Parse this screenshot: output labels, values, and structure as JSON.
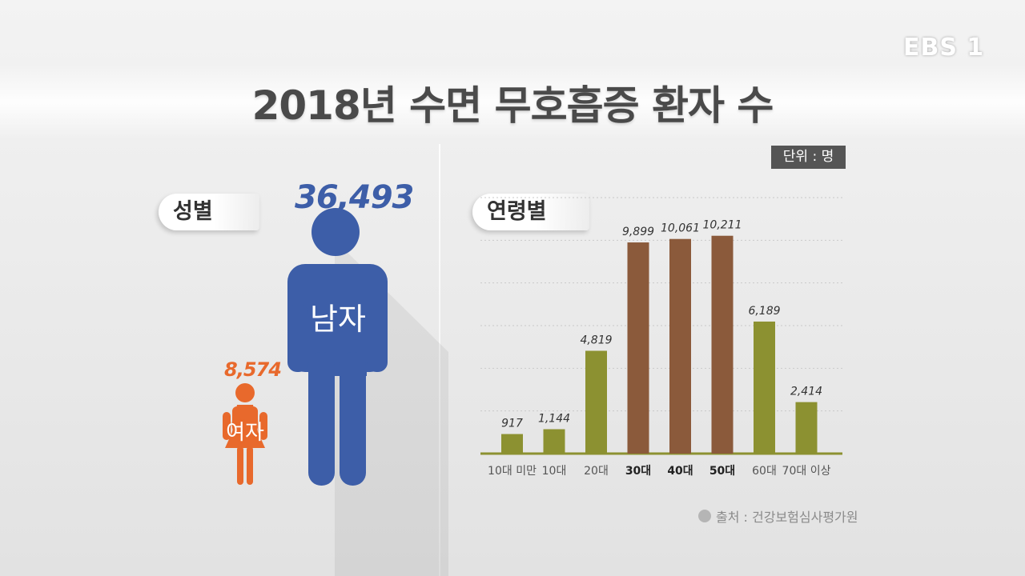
{
  "logo": "EBS 1",
  "title": "2018년 수면 무호흡증 환자 수",
  "unit": "단위 : 명",
  "gender": {
    "section_label": "성별",
    "male": {
      "label": "남자",
      "value_text": "36,493",
      "value": 36493,
      "color": "#3d5ea8"
    },
    "female": {
      "label": "여자",
      "value_text": "8,574",
      "value": 8574,
      "color": "#e8692c"
    }
  },
  "age_section_label": "연령별",
  "source": "출처 : 건강보험심사평가원",
  "chart_data": {
    "type": "bar",
    "categories": [
      "10대 미만",
      "10대",
      "20대",
      "30대",
      "40대",
      "50대",
      "60대",
      "70대 이상"
    ],
    "values": [
      917,
      1144,
      4819,
      9899,
      10061,
      10211,
      6189,
      2414
    ],
    "value_labels": [
      "917",
      "1,144",
      "4,819",
      "9,899",
      "10,061",
      "10,211",
      "6,189",
      "2,414"
    ],
    "highlighted": [
      "30대",
      "40대",
      "50대"
    ],
    "colors": {
      "normal": "#8c9131",
      "highlight": "#8b5a3b"
    },
    "ylim": [
      0,
      12000
    ],
    "grid": true,
    "title": "",
    "xlabel": "",
    "ylabel": ""
  }
}
